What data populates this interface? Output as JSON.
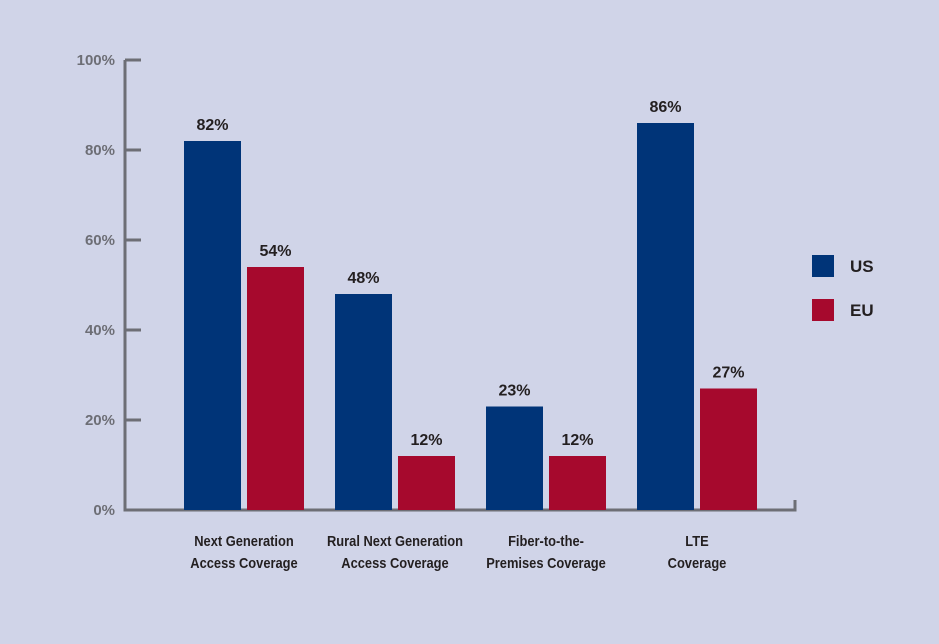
{
  "chart_data": {
    "type": "bar",
    "title": "",
    "xlabel": "",
    "ylabel": "",
    "ylim": [
      0,
      100
    ],
    "yticks": [
      "0%",
      "20%",
      "40%",
      "60%",
      "80%",
      "100%"
    ],
    "grid": false,
    "legend_position": "right",
    "categories": [
      [
        "Next Generation",
        "Access Coverage"
      ],
      [
        "Rural Next Generation",
        "Access Coverage"
      ],
      [
        "Fiber-to-the-",
        "Premises Coverage"
      ],
      [
        "LTE",
        "Coverage"
      ]
    ],
    "series": [
      {
        "name": "US",
        "color": "#003478",
        "values": [
          82,
          48,
          23,
          86
        ],
        "labels": [
          "82%",
          "48%",
          "23%",
          "86%"
        ]
      },
      {
        "name": "EU",
        "color": "#a6092d",
        "values": [
          54,
          12,
          12,
          27
        ],
        "labels": [
          "54%",
          "12%",
          "12%",
          "27%"
        ]
      }
    ]
  },
  "colors": {
    "background": "#d0d4e8",
    "axis": "#6d6e75"
  }
}
